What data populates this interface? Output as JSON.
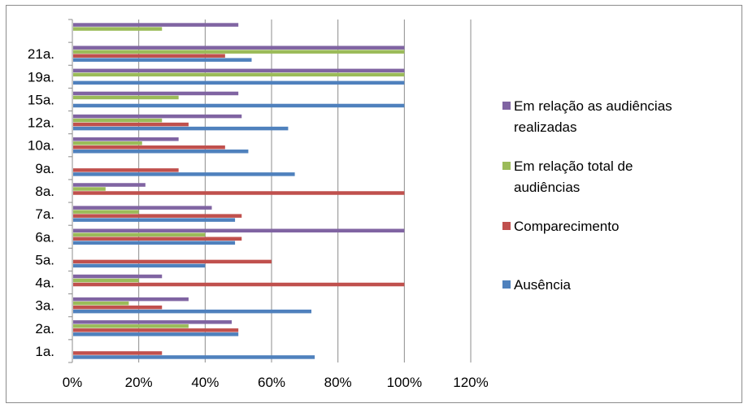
{
  "chart_data": {
    "type": "bar",
    "orientation": "horizontal",
    "title": "",
    "xlabel": "",
    "ylabel": "",
    "xlim": [
      0,
      1.2
    ],
    "x_ticks": [
      "0%",
      "20%",
      "40%",
      "60%",
      "80%",
      "100%",
      "120%"
    ],
    "grid": true,
    "legend_position": "right",
    "categories": [
      "1a.",
      "2a.",
      "3a.",
      "4a.",
      "5a.",
      "6a.",
      "7a.",
      "8a.",
      "9a.",
      "10a.",
      "12a.",
      "15a.",
      "19a.",
      "21a.",
      ""
    ],
    "series": [
      {
        "name": "Ausência",
        "color": "#4f81bd",
        "values": [
          0.73,
          0.5,
          0.72,
          0,
          0.4,
          0.49,
          0.49,
          0,
          0.67,
          0.53,
          0.65,
          1.0,
          1.0,
          0.54,
          0
        ]
      },
      {
        "name": "Comparecimento",
        "color": "#c0504d",
        "values": [
          0.27,
          0.5,
          0.27,
          1.0,
          0.6,
          0.51,
          0.51,
          1.0,
          0.32,
          0.46,
          0.35,
          0,
          0,
          0.46,
          0
        ]
      },
      {
        "name": "Em relação total de audiências",
        "color": "#9bbb59",
        "values": [
          0,
          0.35,
          0.17,
          0.2,
          0,
          0.4,
          0.2,
          0.1,
          0,
          0.21,
          0.27,
          0.32,
          1.0,
          1.0,
          0.27
        ]
      },
      {
        "name": "Em relação as audiências realizadas",
        "color": "#8064a2",
        "values": [
          0,
          0.48,
          0.35,
          0.27,
          0,
          1.0,
          0.42,
          0.22,
          0,
          0.32,
          0.51,
          0.5,
          1.0,
          1.0,
          0.5
        ]
      }
    ]
  },
  "legend": {
    "items": [
      {
        "lines": [
          "Em relação as audiências",
          "realizadas"
        ],
        "color": "#8064a2"
      },
      {
        "lines": [
          "Em relação total de",
          "audiências"
        ],
        "color": "#9bbb59"
      },
      {
        "lines": [
          "Comparecimento"
        ],
        "color": "#c0504d"
      },
      {
        "lines": [
          "Ausência"
        ],
        "color": "#4f81bd"
      }
    ]
  }
}
